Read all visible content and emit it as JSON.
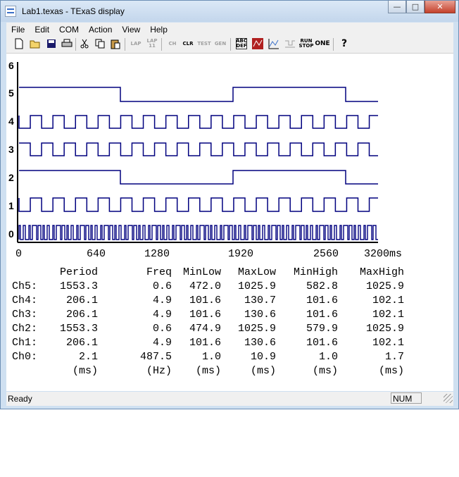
{
  "window": {
    "title": "Lab1.texas - TExaS display"
  },
  "menu": [
    "File",
    "Edit",
    "COM",
    "Action",
    "View",
    "Help"
  ],
  "toolbar": {
    "labels": {
      "lap1": "LAP",
      "lap2": "LAP\n11",
      "ch": "CH",
      "clr": "CLR",
      "test": "TEST",
      "gen": "GEN",
      "abc": "ABC\nDEF",
      "run": "RUN\nSTOP",
      "one": "ONE",
      "help": "?"
    }
  },
  "waveform": {
    "channel_labels": [
      "6",
      "5",
      "4",
      "3",
      "2",
      "1",
      "0"
    ],
    "x_ticks": [
      "0",
      "640",
      "1280",
      "1920",
      "2560",
      "3200ms"
    ],
    "trace_color": "#00007f"
  },
  "stats": {
    "headers": [
      "Period",
      "Freq",
      "MinLow",
      "MaxLow",
      "MinHigh",
      "MaxHigh"
    ],
    "rows": [
      {
        "name": "Ch5:",
        "vals": [
          "1553.3",
          "0.6",
          "472.0",
          "1025.9",
          "582.8",
          "1025.9"
        ]
      },
      {
        "name": "Ch4:",
        "vals": [
          "206.1",
          "4.9",
          "101.6",
          "130.7",
          "101.6",
          "102.1"
        ]
      },
      {
        "name": "Ch3:",
        "vals": [
          "206.1",
          "4.9",
          "101.6",
          "130.6",
          "101.6",
          "102.1"
        ]
      },
      {
        "name": "Ch2:",
        "vals": [
          "1553.3",
          "0.6",
          "474.9",
          "1025.9",
          "579.9",
          "1025.9"
        ]
      },
      {
        "name": "Ch1:",
        "vals": [
          "206.1",
          "4.9",
          "101.6",
          "130.6",
          "101.6",
          "102.1"
        ]
      },
      {
        "name": "Ch0:",
        "vals": [
          "2.1",
          "487.5",
          "1.0",
          "10.9",
          "1.0",
          "1.7"
        ]
      }
    ],
    "units": [
      "(ms)",
      "(Hz)",
      "(ms)",
      "(ms)",
      "(ms)",
      "(ms)"
    ]
  },
  "status": {
    "text": "Ready",
    "num": "NUM"
  }
}
